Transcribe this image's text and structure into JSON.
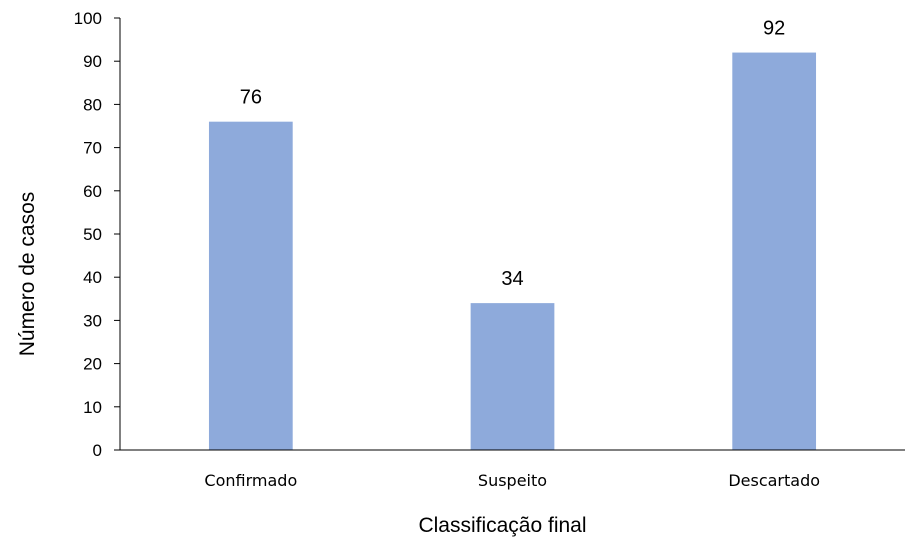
{
  "chart_data": {
    "type": "bar",
    "categories": [
      "Confirmado",
      "Suspeito",
      "Descartado"
    ],
    "values": [
      76,
      34,
      92
    ],
    "data_labels": [
      "76",
      "34",
      "92"
    ],
    "title": "",
    "xlabel": "Classificação final",
    "ylabel": "Número de casos",
    "ylim": [
      0,
      100
    ],
    "yticks": [
      0,
      10,
      20,
      30,
      40,
      50,
      60,
      70,
      80,
      90,
      100
    ],
    "grid": false,
    "bar_color": "#8eaadb",
    "axis_color": "#000000"
  }
}
